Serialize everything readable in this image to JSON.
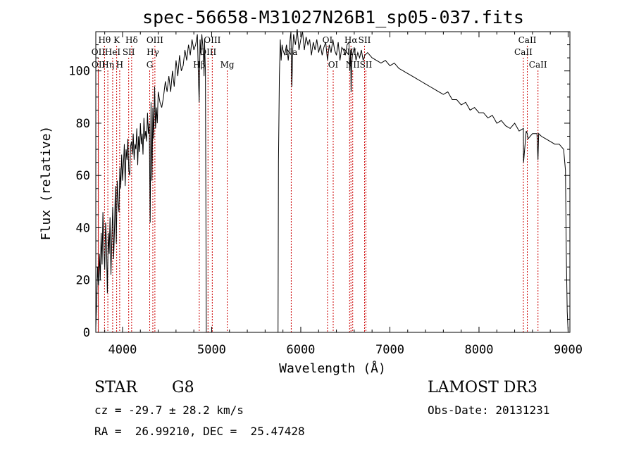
{
  "chart_data": {
    "type": "line",
    "title": "spec-56658-M31027N26B1_sp05-037.fits",
    "xlabel": "Wavelength (Å)",
    "ylabel": "Flux (relative)",
    "xlim": [
      3700,
      9020
    ],
    "ylim": [
      0,
      115
    ],
    "xticks": [
      4000,
      5000,
      6000,
      7000,
      8000,
      9000
    ],
    "yticks": [
      0,
      20,
      40,
      60,
      80,
      100
    ],
    "grid": false,
    "line_color": "#000000",
    "marker_line_color": "#cc0000",
    "series": [
      {
        "x": [
          3700,
          3710,
          3720,
          3730,
          3740,
          3750,
          3760,
          3770,
          3780,
          3790,
          3800,
          3810,
          3820,
          3830,
          3840,
          3850,
          3860,
          3870,
          3880,
          3890,
          3900,
          3910,
          3920,
          3930,
          3940,
          3950,
          3960,
          3970,
          3980,
          3990,
          4000,
          4010,
          4020,
          4030,
          4040,
          4050,
          4060,
          4070,
          4080,
          4090,
          4100,
          4110,
          4120,
          4130,
          4140,
          4150,
          4160,
          4170,
          4180,
          4190,
          4200,
          4210,
          4220,
          4230,
          4240,
          4250,
          4260,
          4270,
          4280,
          4290,
          4300,
          4310,
          4320,
          4330,
          4340,
          4350,
          4360,
          4370,
          4380,
          4390,
          4400,
          4420,
          4440,
          4460,
          4480,
          4500,
          4520,
          4540,
          4560,
          4580,
          4600,
          4620,
          4640,
          4660,
          4680,
          4700,
          4720,
          4740,
          4760,
          4780,
          4800,
          4820,
          4840,
          4850,
          4860,
          4870,
          4880,
          4890,
          4900,
          4910,
          4915,
          4920,
          4930,
          4940,
          5745,
          5750,
          5760,
          5770,
          5780,
          5790,
          5800,
          5820,
          5840,
          5860,
          5880,
          5890,
          5895,
          5900,
          5910,
          5920,
          5940,
          5960,
          5980,
          6000,
          6020,
          6040,
          6060,
          6080,
          6100,
          6120,
          6140,
          6160,
          6180,
          6200,
          6220,
          6240,
          6260,
          6280,
          6300,
          6320,
          6340,
          6360,
          6380,
          6400,
          6420,
          6440,
          6460,
          6480,
          6500,
          6520,
          6540,
          6550,
          6560,
          6565,
          6570,
          6580,
          6600,
          6620,
          6640,
          6660,
          6680,
          6700,
          6720,
          6750,
          6800,
          6850,
          6900,
          6950,
          7000,
          7050,
          7100,
          7150,
          7200,
          7250,
          7300,
          7350,
          7400,
          7450,
          7500,
          7550,
          7600,
          7650,
          7700,
          7750,
          7800,
          7850,
          7900,
          7950,
          8000,
          8050,
          8100,
          8150,
          8200,
          8250,
          8300,
          8350,
          8400,
          8450,
          8498,
          8500,
          8530,
          8542,
          8550,
          8600,
          8650,
          8662,
          8670,
          8700,
          8750,
          8800,
          8850,
          8900,
          8950,
          8970,
          8980,
          8990,
          9000,
          9005
        ],
        "y": [
          2,
          12,
          25,
          18,
          30,
          20,
          38,
          26,
          46,
          32,
          24,
          42,
          34,
          15,
          38,
          30,
          44,
          22,
          36,
          48,
          28,
          40,
          56,
          34,
          58,
          50,
          46,
          63,
          55,
          68,
          58,
          64,
          72,
          56,
          70,
          66,
          74,
          62,
          60,
          71,
          73,
          68,
          76,
          66,
          72,
          70,
          78,
          64,
          75,
          69,
          80,
          72,
          76,
          68,
          82,
          74,
          77,
          73,
          84,
          76,
          80,
          42,
          88,
          58,
          86,
          74,
          94,
          78,
          86,
          80,
          92,
          88,
          86,
          90,
          96,
          92,
          98,
          92,
          100,
          94,
          104,
          98,
          106,
          100,
          102,
          108,
          104,
          110,
          106,
          112,
          108,
          110,
          114,
          100,
          88,
          112,
          106,
          114,
          110,
          104,
          98,
          112,
          100,
          0,
          0,
          65,
          98,
          112,
          104,
          110,
          108,
          106,
          110,
          104,
          112,
          115,
          102,
          94,
          108,
          114,
          110,
          116,
          108,
          112,
          115,
          108,
          113,
          110,
          112,
          106,
          111,
          108,
          112,
          107,
          110,
          106,
          109,
          111,
          104,
          110,
          107,
          112,
          108,
          106,
          111,
          104,
          109,
          108,
          106,
          110,
          111,
          100,
          108,
          92,
          102,
          106,
          109,
          104,
          107,
          105,
          108,
          104,
          106,
          107,
          105,
          104,
          103,
          104,
          102,
          103,
          101,
          100,
          99,
          98,
          97,
          96,
          95,
          94,
          93,
          92,
          91,
          92,
          89,
          89,
          87,
          88,
          85,
          86,
          84,
          84,
          82,
          83,
          80,
          81,
          79,
          78,
          80,
          77,
          78,
          65,
          77,
          76,
          74,
          76,
          76,
          66,
          76,
          75,
          74,
          73,
          72,
          72,
          70,
          62,
          30,
          8,
          0,
          0
        ]
      }
    ],
    "line_markers": [
      {
        "label": "Hθ",
        "wl": 3798,
        "row": 1
      },
      {
        "label": "OII",
        "wl": 3727,
        "row": 2
      },
      {
        "label": "OII",
        "wl": 3729,
        "row": 3
      },
      {
        "label": "Hη",
        "wl": 3835,
        "row": 3
      },
      {
        "label": "HeI",
        "wl": 3889,
        "row": 2
      },
      {
        "label": "K",
        "wl": 3934,
        "row": 1
      },
      {
        "label": "SII",
        "wl": 4069,
        "row": 2
      },
      {
        "label": "H",
        "wl": 3968,
        "row": 3
      },
      {
        "label": "Hδ",
        "wl": 4102,
        "row": 1
      },
      {
        "label": "OIII",
        "wl": 4363,
        "row": 1
      },
      {
        "label": "Hγ",
        "wl": 4340,
        "row": 2
      },
      {
        "label": "G",
        "wl": 4305,
        "row": 3
      },
      {
        "label": "OIII",
        "wl": 5007,
        "row": 1
      },
      {
        "label": "OIII",
        "wl": 4959,
        "row": 2
      },
      {
        "label": "Hβ",
        "wl": 4861,
        "row": 3
      },
      {
        "label": "Mg",
        "wl": 5175,
        "row": 3
      },
      {
        "label": "Na",
        "wl": 5893,
        "row": 2
      },
      {
        "label": "OI",
        "wl": 6300,
        "row": 1
      },
      {
        "label": "OI",
        "wl": 6364,
        "row": 3
      },
      {
        "label": "Hα",
        "wl": 6563,
        "row": 1
      },
      {
        "label": "SII",
        "wl": 6716,
        "row": 1
      },
      {
        "label": "NII",
        "wl": 6548,
        "row": 2
      },
      {
        "label": "NII",
        "wl": 6583,
        "row": 3
      },
      {
        "label": "SII",
        "wl": 6731,
        "row": 3
      },
      {
        "label": "CaII",
        "wl": 8542,
        "row": 1
      },
      {
        "label": "CaII",
        "wl": 8498,
        "row": 2
      },
      {
        "label": "CaII",
        "wl": 8662,
        "row": 3
      }
    ]
  },
  "info": {
    "object_class": "STAR",
    "subclass": "G8",
    "survey": "LAMOST DR3",
    "redshift": "cz = -29.7 ± 28.2 km/s",
    "obs_date": "Obs-Date: 20131231",
    "coords": "RA =  26.99210, DEC =  25.47428"
  }
}
